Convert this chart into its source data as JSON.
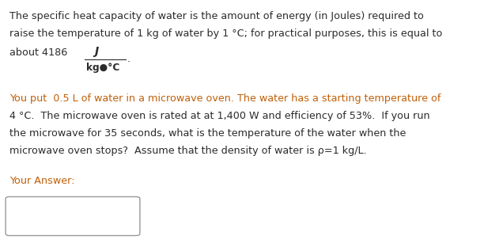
{
  "background_color": "#ffffff",
  "text_color": "#2b2b2b",
  "orange_color": "#c0600a",
  "fig_width": 6.12,
  "fig_height": 3.17,
  "dpi": 100,
  "line1": "The specific heat capacity of water is the amount of energy (in Joules) required to",
  "line2": "raise the temperature of 1 kg of water by 1 °C; for practical purposes, this is equal to",
  "line3_prefix": "about 4186  ",
  "line3_numerator": "J",
  "line3_denominator": "kg●°C",
  "line4": "You put  0.5 L of water in a microwave oven. The water has a starting temperature of",
  "line5": "4 °C.  The microwave oven is rated at at 1,400 W and efficiency of 53%.  If you run",
  "line6": "the microwave for 35 seconds, what is the temperature of the water when the",
  "line7": "microwave oven stops?  Assume that the density of water is ρ=1 kg/L.",
  "your_answer_label": "Your Answer:",
  "font_size": 9.2,
  "font_family": "DejaVu Sans"
}
